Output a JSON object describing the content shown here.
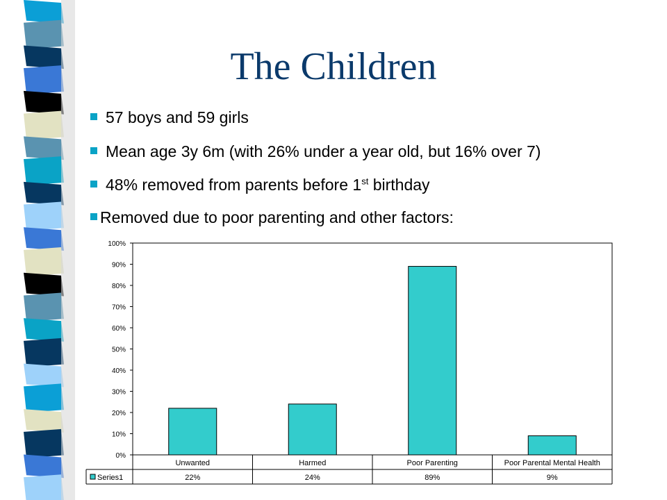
{
  "slide": {
    "title": "The Children",
    "bullets": [
      {
        "text": "57 boys and 59 girls"
      },
      {
        "text": "Mean age 3y 6m (with 26% under a year old, but 16% over 7)"
      },
      {
        "text": "48% removed from parents before 1",
        "sup": "st",
        "tail": " birthday"
      },
      {
        "text": "Removed due to poor parenting and other factors:"
      }
    ],
    "colors": {
      "title": "#0b3a6b",
      "bullet": "#0aa3c6",
      "stripe": [
        "#0b9fd6",
        "#5a93b0",
        "#063760",
        "#3a78d6",
        "#000000",
        "#e2e2c2",
        "#5a93b0",
        "#0aa3c6",
        "#063760",
        "#9ed2fa",
        "#3a78d6",
        "#e2e2c2",
        "#000000",
        "#5a93b0",
        "#0aa3c6",
        "#063760",
        "#9ed2fa",
        "#0b9fd6",
        "#e2e2c2",
        "#063760",
        "#3a78d6",
        "#9ed2fa"
      ]
    }
  },
  "chart_data": {
    "type": "bar",
    "categories": [
      "Unwanted",
      "Harmed",
      "Poor Parenting",
      "Poor Parental Mental Health"
    ],
    "series": [
      {
        "name": "Series1",
        "values": [
          22,
          24,
          89,
          9
        ],
        "color": "#33cccc"
      }
    ],
    "data_labels": [
      "22%",
      "24%",
      "89%",
      "9%"
    ],
    "yticks": [
      "0%",
      "10%",
      "20%",
      "30%",
      "40%",
      "50%",
      "60%",
      "70%",
      "80%",
      "90%",
      "100%"
    ],
    "ylim": [
      0,
      100
    ],
    "grid": false,
    "legend": "data-table"
  }
}
